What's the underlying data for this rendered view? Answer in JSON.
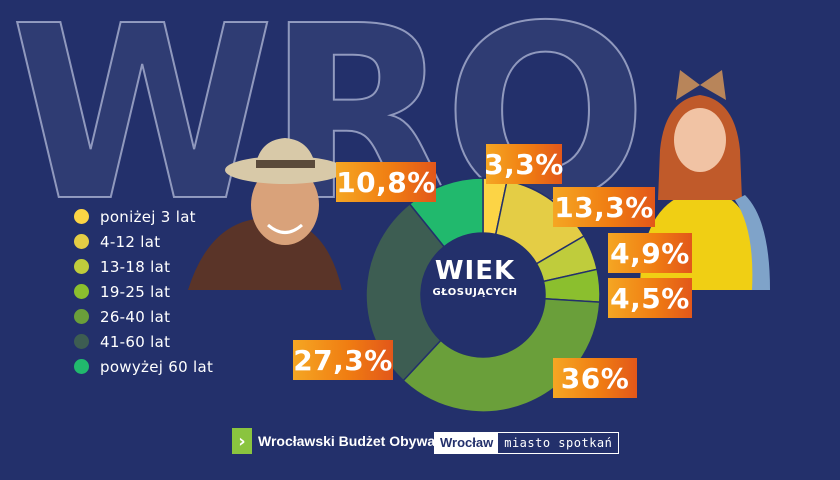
{
  "background_text": "WRO",
  "colors": {
    "background": "#23306b",
    "badge": "#f07d12",
    "slices": [
      "#fcd445",
      "#e4cd45",
      "#bfcc3c",
      "#8bbf2e",
      "#6a9f3a",
      "#3d5d52",
      "#21b96d"
    ]
  },
  "center": {
    "line1": "WIEK",
    "line2": "GŁOSUJĄCYCH"
  },
  "legend": [
    {
      "label": "poniżej 3 lat"
    },
    {
      "label": "4-12 lat"
    },
    {
      "label": "13-18 lat"
    },
    {
      "label": "19-25 lat"
    },
    {
      "label": "26-40 lat"
    },
    {
      "label": "41-60 lat"
    },
    {
      "label": "powyżej 60 lat"
    }
  ],
  "chart_data": {
    "type": "pie",
    "donut": true,
    "categories": [
      "poniżej 3 lat",
      "4-12 lat",
      "13-18 lat",
      "19-25 lat",
      "26-40 lat",
      "41-60 lat",
      "powyżej 60 lat"
    ],
    "values": [
      3.3,
      13.3,
      4.9,
      4.5,
      36,
      27.3,
      10.8
    ],
    "data_labels": [
      "3,3%",
      "13,3%",
      "4,9%",
      "4,5%",
      "36%",
      "27,3%",
      "10,8%"
    ],
    "colors": [
      "#fcd445",
      "#e4cd45",
      "#bfcc3c",
      "#8bbf2e",
      "#6a9f3a",
      "#3d5d52",
      "#21b96d"
    ]
  },
  "footer": {
    "wbo_icon": "chevron-right-icon",
    "wbo_text": "Wrocławski Budżet Obywatelski",
    "wroclaw_word": "Wrocław",
    "wroclaw_tagline": "miasto spotkań"
  }
}
